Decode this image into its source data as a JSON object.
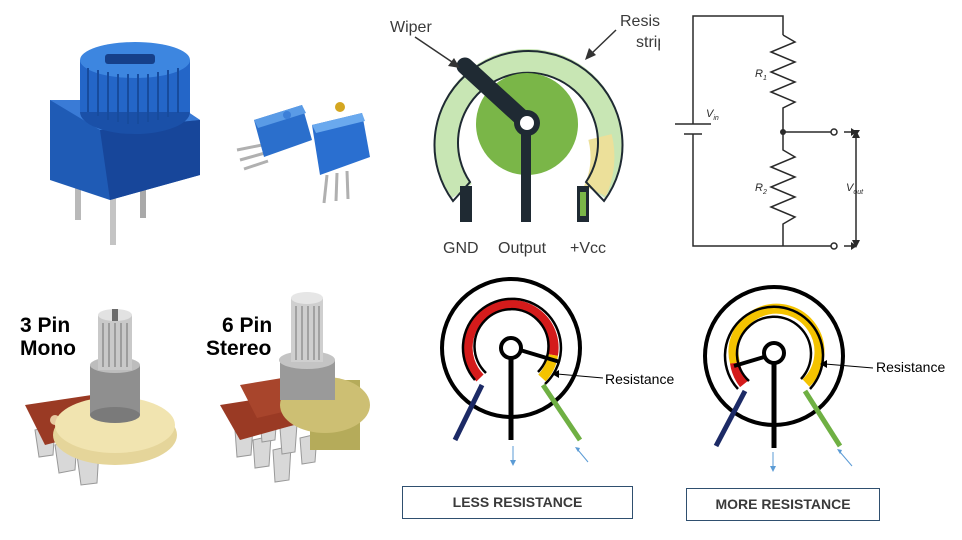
{
  "top_diagram": {
    "wiper_label": "Wiper",
    "strip_label": "Resistive strip",
    "gnd_label": "GND",
    "output_label": "Output",
    "vcc_label": "+Vcc"
  },
  "circuit": {
    "r1_label": "R",
    "r1_sub": "1",
    "r2_label": "R",
    "r2_sub": "2",
    "vin_label": "V",
    "vin_sub": "in",
    "vout_label": "V",
    "vout_sub": "out"
  },
  "photos": {
    "mono_label_line1": "3 Pin",
    "mono_label_line2": "Mono",
    "stereo_label_line1": "6 Pin",
    "stereo_label_line2": "Stereo"
  },
  "bottom_diagrams": {
    "left_resistance_label": "Resistance",
    "left_caption": "LESS RESISTANCE",
    "right_resistance_label": "Resistance",
    "right_caption": "MORE RESISTANCE"
  },
  "colors": {
    "track_green_light": "#c8e6b4",
    "wiper_green": "#7ab648",
    "wiper_dark": "#1f2a33",
    "yellow_strip": "#ece09a",
    "red_arc": "#d41b1b",
    "gold_arc": "#f4c300",
    "blue_leg": "#1c2a66",
    "green_leg": "#6fb043",
    "knob_blue": "#1f5bb5",
    "pcb_brown": "#9a3a24"
  }
}
